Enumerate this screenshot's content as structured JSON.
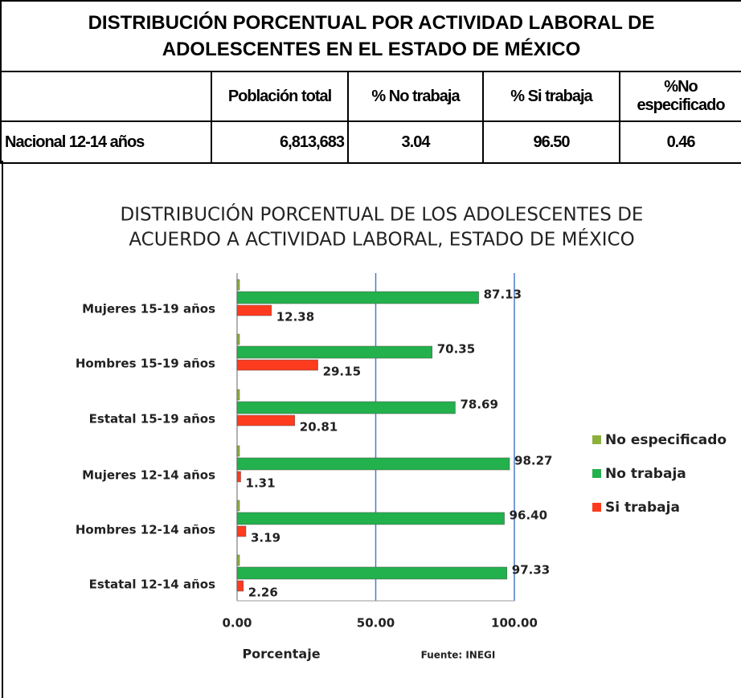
{
  "table": {
    "title": [
      "DISTRIBUCIÓN PORCENTUAL POR ACTIVIDAD LABORAL DE",
      "ADOLESCENTES EN EL ESTADO DE MÉXICO"
    ],
    "header": [
      "Población total",
      "% No trabaja",
      "% Si trabaja",
      "%No especificado"
    ],
    "rows": [
      [
        "Nacional 12-14 años",
        "6,813,683",
        "3.04",
        "96.50",
        "0.46"
      ]
    ]
  },
  "chart_data": {
    "type": "bar",
    "orientation": "horizontal",
    "title": [
      "DISTRIBUCIÓN PORCENTUAL DE LOS ADOLESCENTES DE",
      "ACUERDO A ACTIVIDAD LABORAL, ESTADO DE MÉXICO"
    ],
    "categories": [
      "Mujeres 15-19 años",
      "Hombres 15-19 años",
      "Estatal 15-19 años",
      "Mujeres 12-14 años",
      "Hombres 12-14 años",
      "Estatal 12-14 años"
    ],
    "series": [
      {
        "name": "No especificado",
        "color": "#8db03c",
        "values": [
          0.49,
          0.5,
          0.5,
          0.42,
          0.41,
          0.41
        ]
      },
      {
        "name": "No trabaja",
        "color": "#22b14c",
        "values": [
          87.13,
          70.35,
          78.69,
          98.27,
          96.4,
          97.33
        ],
        "value_labels": [
          "87.13",
          "70.35",
          "78.69",
          "98.27",
          "96.40",
          "97.33"
        ]
      },
      {
        "name": "Si trabaja",
        "color": "#ff3b1f",
        "values": [
          12.38,
          29.15,
          20.81,
          1.31,
          3.19,
          2.26
        ],
        "value_labels": [
          "12.38",
          "29.15",
          "20.81",
          "1.31",
          "3.19",
          "2.26"
        ]
      }
    ],
    "xlim": [
      0,
      100
    ],
    "xticks": [
      {
        "value": 0,
        "label": "0.00"
      },
      {
        "value": 50,
        "label": "50.00"
      },
      {
        "value": 100,
        "label": "100.00"
      }
    ],
    "xlabel": "Porcentaje",
    "source": "Fuente: INEGI",
    "grid": true,
    "legend": "right"
  }
}
